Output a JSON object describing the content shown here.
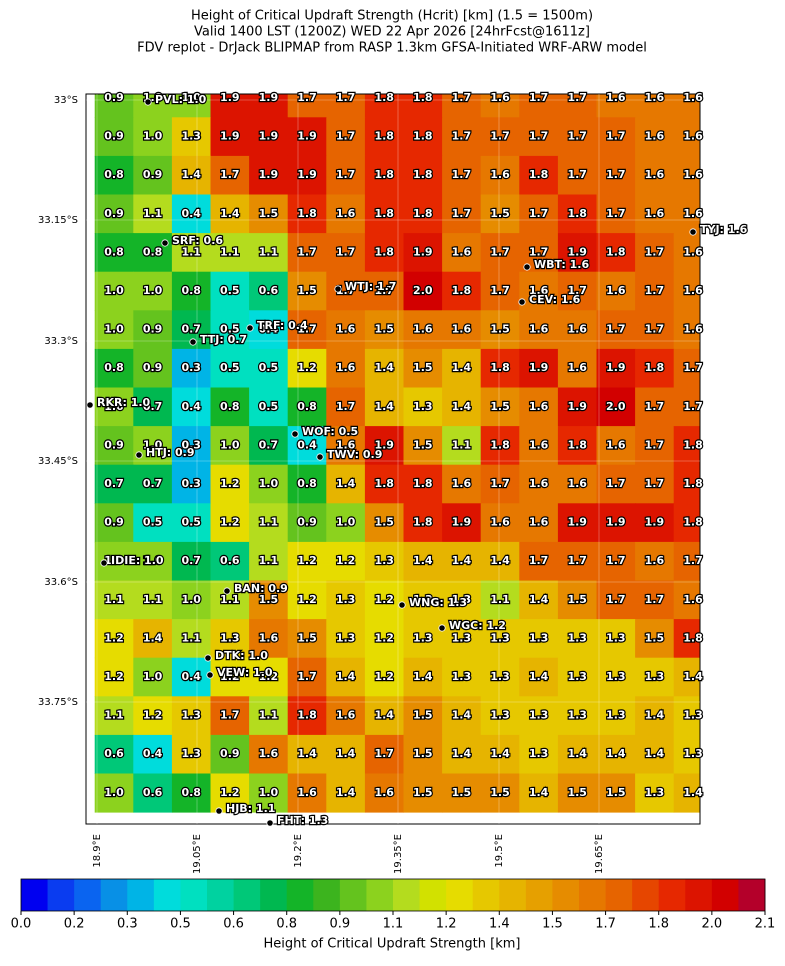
{
  "header": {
    "lines": [
      "Height of Critical Updraft Strength (Hcrit) [km] (1.5 = 1500m)",
      "Valid 1400 LST (1200Z) WED 22 Apr 2026 [24hrFcst@1611z]",
      "FDV replot - DrJack BLIPMAP from RASP 1.3km GFSA-Initiated WRF-ARW model"
    ]
  },
  "map": {
    "lat_labels": [
      "33°S",
      "33.15°S",
      "33.3°S",
      "33.45°S",
      "33.6°S",
      "33.75°S"
    ],
    "lon_labels": [
      "18.9°E",
      "19.05°E",
      "19.2°E",
      "19.35°E",
      "19.5°E",
      "19.65°E"
    ],
    "grid": [
      [
        "0.9",
        "1.0",
        "1.0",
        "1.9",
        "1.9",
        "1.7",
        "1.7",
        "1.8",
        "1.8",
        "1.7",
        "1.6",
        "1.7",
        "1.7",
        "1.6",
        "1.6",
        "1.6"
      ],
      [
        "0.9",
        "1.0",
        "1.3",
        "1.9",
        "1.9",
        "1.9",
        "1.7",
        "1.8",
        "1.8",
        "1.7",
        "1.7",
        "1.7",
        "1.7",
        "1.7",
        "1.6",
        "1.6"
      ],
      [
        "0.8",
        "0.9",
        "1.4",
        "1.7",
        "1.9",
        "1.9",
        "1.7",
        "1.8",
        "1.8",
        "1.7",
        "1.6",
        "1.8",
        "1.7",
        "1.7",
        "1.6",
        "1.6"
      ],
      [
        "0.9",
        "1.1",
        "0.4",
        "1.4",
        "1.5",
        "1.8",
        "1.6",
        "1.8",
        "1.8",
        "1.7",
        "1.5",
        "1.7",
        "1.8",
        "1.7",
        "1.6",
        "1.6"
      ],
      [
        "0.8",
        "0.8",
        "1.1",
        "1.1",
        "1.1",
        "1.7",
        "1.7",
        "1.8",
        "1.9",
        "1.6",
        "1.7",
        "1.7",
        "1.9",
        "1.8",
        "1.7",
        "1.6"
      ],
      [
        "1.0",
        "1.0",
        "0.8",
        "0.5",
        "0.6",
        "1.5",
        "1.7",
        "1.7",
        "2.0",
        "1.8",
        "1.7",
        "1.6",
        "1.7",
        "1.6",
        "1.7",
        "1.6"
      ],
      [
        "1.0",
        "0.9",
        "0.7",
        "0.5",
        "0.4",
        "1.7",
        "1.6",
        "1.5",
        "1.6",
        "1.6",
        "1.5",
        "1.6",
        "1.6",
        "1.7",
        "1.7",
        "1.6"
      ],
      [
        "0.8",
        "0.9",
        "0.3",
        "0.5",
        "0.5",
        "1.2",
        "1.6",
        "1.4",
        "1.5",
        "1.4",
        "1.8",
        "1.9",
        "1.6",
        "1.9",
        "1.8",
        "1.7"
      ],
      [
        "1.0",
        "0.7",
        "0.4",
        "0.8",
        "0.5",
        "0.8",
        "1.7",
        "1.4",
        "1.3",
        "1.4",
        "1.5",
        "1.6",
        "1.9",
        "2.0",
        "1.7",
        "1.7"
      ],
      [
        "0.9",
        "1.0",
        "0.3",
        "1.0",
        "0.7",
        "0.4",
        "1.6",
        "1.9",
        "1.5",
        "1.1",
        "1.8",
        "1.6",
        "1.8",
        "1.6",
        "1.7",
        "1.8"
      ],
      [
        "0.7",
        "0.7",
        "0.3",
        "1.2",
        "1.0",
        "0.8",
        "1.4",
        "1.8",
        "1.8",
        "1.6",
        "1.7",
        "1.6",
        "1.6",
        "1.7",
        "1.7",
        "1.8"
      ],
      [
        "0.9",
        "0.5",
        "0.5",
        "1.2",
        "1.1",
        "0.9",
        "1.0",
        "1.5",
        "1.8",
        "1.9",
        "1.6",
        "1.6",
        "1.9",
        "1.9",
        "1.9",
        "1.8"
      ],
      [
        "1.0",
        "1.0",
        "0.7",
        "0.6",
        "1.1",
        "1.2",
        "1.2",
        "1.3",
        "1.4",
        "1.4",
        "1.4",
        "1.7",
        "1.7",
        "1.7",
        "1.6",
        "1.7"
      ],
      [
        "1.1",
        "1.1",
        "1.0",
        "1.1",
        "1.5",
        "1.2",
        "1.3",
        "1.2",
        "1.3",
        "1.3",
        "1.1",
        "1.4",
        "1.5",
        "1.7",
        "1.7",
        "1.6"
      ],
      [
        "1.2",
        "1.4",
        "1.1",
        "1.3",
        "1.6",
        "1.5",
        "1.3",
        "1.2",
        "1.3",
        "1.3",
        "1.3",
        "1.3",
        "1.3",
        "1.3",
        "1.5",
        "1.8"
      ],
      [
        "1.2",
        "1.0",
        "0.4",
        "1.2",
        "1.2",
        "1.7",
        "1.4",
        "1.2",
        "1.4",
        "1.3",
        "1.3",
        "1.4",
        "1.3",
        "1.3",
        "1.3",
        "1.4"
      ],
      [
        "1.1",
        "1.2",
        "1.3",
        "1.7",
        "1.1",
        "1.8",
        "1.6",
        "1.4",
        "1.5",
        "1.4",
        "1.3",
        "1.3",
        "1.3",
        "1.3",
        "1.4",
        "1.3"
      ],
      [
        "0.6",
        "0.4",
        "1.3",
        "0.9",
        "1.6",
        "1.4",
        "1.4",
        "1.7",
        "1.5",
        "1.4",
        "1.4",
        "1.3",
        "1.4",
        "1.4",
        "1.4",
        "1.3"
      ],
      [
        "1.0",
        "0.6",
        "0.8",
        "1.2",
        "1.0",
        "1.6",
        "1.4",
        "1.6",
        "1.5",
        "1.5",
        "1.5",
        "1.4",
        "1.5",
        "1.5",
        "1.3",
        "1.4"
      ]
    ],
    "stations": [
      "PVL: 1.0",
      "SRF: 0.6",
      "TYJ: 1.6",
      "WBT: 1.6",
      "WTJ: 1.7",
      "CEV: 1.6",
      "TRF: 0.4",
      "TTJ: 0.7",
      "RKR: 1.0",
      "WOF: 0.5",
      "HTJ: 0.9",
      "TWV: 0.9",
      "IDIE: 1.0",
      "BAN: 0.9",
      "WNG: 1.3",
      "WGC: 1.2",
      "DTK: 1.0",
      "VEW: 1.0",
      "HJB: 1.1",
      "FHT: 1.3"
    ]
  },
  "colorbar": {
    "lim": [
      0,
      2.1
    ],
    "colors": [
      "#0000f0",
      "#0a3cf0",
      "#0a64f0",
      "#0890e6",
      "#00b4e6",
      "#00dcdc",
      "#00e0c0",
      "#00d2a0",
      "#00c878",
      "#00b850",
      "#14b428",
      "#3cb41e",
      "#64c31e",
      "#8cd21e",
      "#b4dc1e",
      "#d2e100",
      "#e6dc00",
      "#e6c800",
      "#e6b400",
      "#e6a000",
      "#e68c00",
      "#e67800",
      "#e66400",
      "#e64600",
      "#e62800",
      "#dc1400",
      "#d20000",
      "#b4002a"
    ],
    "ticks": [
      {
        "value": 0,
        "label": "0.0"
      },
      {
        "value": 0.15,
        "label": "0.2"
      },
      0.3,
      {
        "value": 0.45,
        "label": "0.5"
      },
      0.6,
      {
        "value": 0.75,
        "label": "0.8"
      },
      0.9,
      {
        "value": 1.05,
        "label": "1.1"
      },
      1.2,
      {
        "value": 1.35,
        "label": "1.4"
      },
      1.5,
      {
        "value": 1.65,
        "label": "1.7"
      },
      1.8,
      {
        "value": 1.95,
        "label": "2.0"
      },
      2.1
    ],
    "label": "Height of Critical Updraft Strength [km]"
  }
}
